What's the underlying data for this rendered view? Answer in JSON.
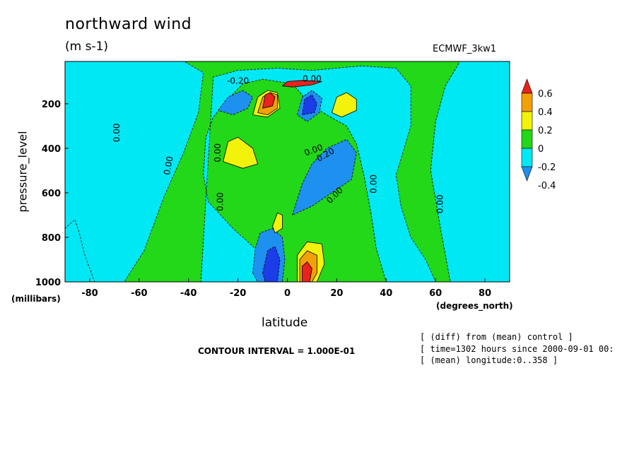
{
  "header": {
    "title": "northward wind",
    "units": "(m s-1)",
    "model": "ECMWF_3kw1"
  },
  "footer": {
    "contour_interval": "CONTOUR INTERVAL = 1.000E-01",
    "info_lines": [
      "[ (diff) from (mean) control ]",
      "[ time=1302 hours since 2000-09-01 00:",
      "[ (mean) longitude:0..358 ]"
    ]
  },
  "chart_data": {
    "type": "heatmap",
    "title": "northward wind",
    "units": "(m s-1)",
    "xlabel": "latitude",
    "xunits": "(degrees_north)",
    "ylabel": "pressure_level",
    "yunits": "(millibars)",
    "xlim": [
      -90,
      90
    ],
    "ylim": [
      1000,
      10
    ],
    "x_ticks": [
      -80,
      -60,
      -40,
      -20,
      0,
      20,
      40,
      60,
      80
    ],
    "y_ticks": [
      200,
      400,
      600,
      800,
      1000
    ],
    "colorbar": {
      "levels": [
        -0.4,
        -0.2,
        0,
        0.2,
        0.4,
        0.6
      ],
      "labels": [
        "0.6",
        "0.4",
        "0.2",
        "0",
        "-0.2",
        "-0.4"
      ],
      "colors": [
        "#e8221c",
        "#f2a007",
        "#f2f20b",
        "#22d818",
        "#00e8f4",
        "#1e90f0"
      ]
    },
    "contour_labels": [
      "0.00",
      "-0.20",
      "0.20"
    ],
    "contour_interval": 0.1,
    "colors": {
      "blue": "#1e90f0",
      "cyan": "#00e8f4",
      "green": "#22d818",
      "yellow": "#f2f20b",
      "orange": "#f2a007",
      "red": "#e8221c",
      "darkblue": "#1b3ce6"
    },
    "regions": [
      {
        "level": "cyan",
        "poly": [
          [
            -90,
            1000
          ],
          [
            -66,
            1000
          ],
          [
            -58,
            860
          ],
          [
            -50,
            620
          ],
          [
            -42,
            420
          ],
          [
            -36,
            240
          ],
          [
            -34,
            60
          ],
          [
            -42,
            8
          ],
          [
            -90,
            8
          ]
        ]
      },
      {
        "level": "cyan",
        "poly": [
          [
            -35,
            1000
          ],
          [
            -12,
            1000
          ],
          [
            -10,
            880
          ],
          [
            -22,
            760
          ],
          [
            -32,
            640
          ],
          [
            -34,
            520
          ],
          [
            -33,
            350
          ],
          [
            -30,
            260
          ],
          [
            -24,
            180
          ],
          [
            -18,
            110
          ],
          [
            -10,
            90
          ],
          [
            2,
            110
          ],
          [
            6,
            160
          ],
          [
            10,
            210
          ],
          [
            16,
            250
          ],
          [
            24,
            300
          ],
          [
            28,
            380
          ],
          [
            31,
            520
          ],
          [
            34,
            700
          ],
          [
            36,
            850
          ],
          [
            40,
            1000
          ],
          [
            60,
            1000
          ],
          [
            56,
            900
          ],
          [
            50,
            800
          ],
          [
            46,
            660
          ],
          [
            44,
            520
          ],
          [
            50,
            300
          ],
          [
            50,
            120
          ],
          [
            44,
            40
          ],
          [
            30,
            30
          ],
          [
            10,
            50
          ],
          [
            -4,
            40
          ],
          [
            -20,
            50
          ],
          [
            -30,
            80
          ]
        ]
      },
      {
        "level": "cyan",
        "poly": [
          [
            66,
            1000
          ],
          [
            90,
            1000
          ],
          [
            90,
            8
          ],
          [
            70,
            8
          ],
          [
            64,
            120
          ],
          [
            60,
            280
          ],
          [
            58,
            500
          ],
          [
            62,
            760
          ]
        ]
      },
      {
        "level": "cyan",
        "poly": [
          [
            -90,
            1000
          ],
          [
            -90,
            760
          ],
          [
            -86,
            720
          ],
          [
            -84,
            790
          ],
          [
            -82,
            880
          ],
          [
            -78,
            1000
          ]
        ]
      },
      {
        "level": "blue",
        "poly": [
          [
            -28,
            230
          ],
          [
            -24,
            170
          ],
          [
            -18,
            140
          ],
          [
            -14,
            170
          ],
          [
            -16,
            220
          ],
          [
            -22,
            250
          ]
        ]
      },
      {
        "level": "blue",
        "poly": [
          [
            4,
            250
          ],
          [
            6,
            170
          ],
          [
            10,
            140
          ],
          [
            14,
            175
          ],
          [
            13,
            240
          ],
          [
            8,
            280
          ]
        ]
      },
      {
        "level": "blue",
        "poly": [
          [
            2,
            700
          ],
          [
            6,
            560
          ],
          [
            10,
            470
          ],
          [
            16,
            400
          ],
          [
            24,
            360
          ],
          [
            28,
            420
          ],
          [
            26,
            540
          ],
          [
            18,
            600
          ],
          [
            10,
            660
          ]
        ]
      },
      {
        "level": "blue",
        "poly": [
          [
            -14,
            960
          ],
          [
            -13,
            850
          ],
          [
            -11,
            780
          ],
          [
            -6,
            760
          ],
          [
            -2,
            800
          ],
          [
            -1,
            900
          ],
          [
            -2,
            1000
          ],
          [
            -12,
            1000
          ]
        ]
      },
      {
        "level": "darkblue",
        "poly": [
          [
            -10,
            960
          ],
          [
            -8,
            860
          ],
          [
            -5,
            840
          ],
          [
            -3,
            900
          ],
          [
            -4,
            1000
          ],
          [
            -9,
            1000
          ]
        ]
      },
      {
        "level": "darkblue",
        "poly": [
          [
            6,
            250
          ],
          [
            7,
            180
          ],
          [
            10,
            160
          ],
          [
            12,
            200
          ],
          [
            11,
            240
          ]
        ]
      },
      {
        "level": "yellow",
        "poly": [
          [
            -26,
            460
          ],
          [
            -24,
            370
          ],
          [
            -20,
            350
          ],
          [
            -14,
            400
          ],
          [
            -12,
            470
          ],
          [
            -18,
            490
          ]
        ]
      },
      {
        "level": "yellow",
        "poly": [
          [
            -14,
            250
          ],
          [
            -12,
            170
          ],
          [
            -8,
            140
          ],
          [
            -4,
            150
          ],
          [
            -3,
            220
          ],
          [
            -8,
            260
          ]
        ]
      },
      {
        "level": "yellow",
        "poly": [
          [
            18,
            240
          ],
          [
            20,
            170
          ],
          [
            24,
            150
          ],
          [
            28,
            180
          ],
          [
            28,
            230
          ],
          [
            22,
            260
          ]
        ]
      },
      {
        "level": "yellow",
        "poly": [
          [
            -6,
            750
          ],
          [
            -4,
            690
          ],
          [
            -2,
            700
          ],
          [
            -2,
            760
          ],
          [
            -5,
            780
          ]
        ]
      },
      {
        "level": "yellow",
        "poly": [
          [
            4,
            1000
          ],
          [
            4,
            880
          ],
          [
            8,
            820
          ],
          [
            14,
            830
          ],
          [
            15,
            920
          ],
          [
            12,
            1000
          ]
        ]
      },
      {
        "level": "orange",
        "poly": [
          [
            -12,
            240
          ],
          [
            -10,
            170
          ],
          [
            -7,
            150
          ],
          [
            -4,
            160
          ],
          [
            -4,
            220
          ],
          [
            -8,
            250
          ]
        ]
      },
      {
        "level": "orange",
        "poly": [
          [
            5,
            1000
          ],
          [
            5,
            900
          ],
          [
            8,
            860
          ],
          [
            12,
            880
          ],
          [
            12,
            960
          ],
          [
            10,
            1000
          ]
        ]
      },
      {
        "level": "red",
        "poly": [
          [
            -10,
            220
          ],
          [
            -9,
            160
          ],
          [
            -7,
            150
          ],
          [
            -5,
            170
          ],
          [
            -6,
            210
          ]
        ]
      },
      {
        "level": "red",
        "poly": [
          [
            6,
            1000
          ],
          [
            6,
            930
          ],
          [
            8,
            910
          ],
          [
            10,
            940
          ],
          [
            9,
            1000
          ]
        ]
      },
      {
        "level": "red",
        "poly": [
          [
            -2,
            120
          ],
          [
            0,
            100
          ],
          [
            6,
            95
          ],
          [
            14,
            100
          ],
          [
            10,
            115
          ],
          [
            2,
            125
          ]
        ]
      }
    ]
  }
}
